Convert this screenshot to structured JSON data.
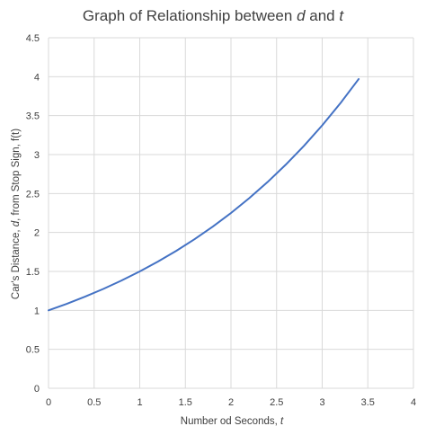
{
  "chart_data": {
    "type": "line",
    "title_parts": [
      {
        "text": "Graph of Relationship between ",
        "italic": false
      },
      {
        "text": "d",
        "italic": true
      },
      {
        "text": " and ",
        "italic": false
      },
      {
        "text": "t",
        "italic": true
      }
    ],
    "xlabel_parts": [
      {
        "text": "Number od Seconds, ",
        "italic": false
      },
      {
        "text": "t",
        "italic": true
      }
    ],
    "ylabel_parts": [
      {
        "text": "Car's Distance, ",
        "italic": false
      },
      {
        "text": "d",
        "italic": true
      },
      {
        "text": ", from Stop Sign, f(t)",
        "italic": false
      }
    ],
    "xlim": [
      0,
      4
    ],
    "ylim": [
      0,
      4.5
    ],
    "x_ticks": [
      "0",
      "0.5",
      "1",
      "1.5",
      "2",
      "2.5",
      "3",
      "3.5",
      "4"
    ],
    "y_ticks": [
      "0",
      "0.5",
      "1",
      "1.5",
      "2",
      "2.5",
      "3",
      "3.5",
      "4",
      "4.5"
    ],
    "grid": true,
    "legend": "none",
    "series": [
      {
        "color": "#4472c4",
        "x": [
          0,
          0.2,
          0.4,
          0.6,
          0.8,
          1.0,
          1.2,
          1.4,
          1.6,
          1.8,
          2.0,
          2.2,
          2.4,
          2.6,
          2.8,
          3.0,
          3.2,
          3.4
        ],
        "y": [
          1.0,
          1.084,
          1.176,
          1.275,
          1.383,
          1.5,
          1.627,
          1.764,
          1.913,
          2.075,
          2.25,
          2.44,
          2.646,
          2.87,
          3.112,
          3.375,
          3.66,
          3.97
        ]
      }
    ]
  }
}
